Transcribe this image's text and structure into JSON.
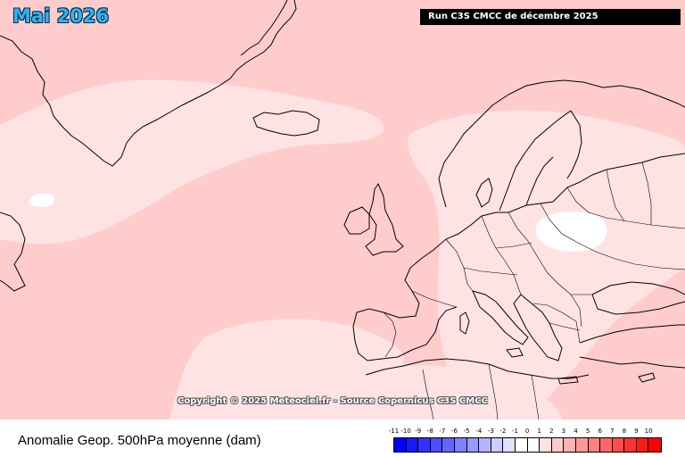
{
  "header": {
    "title": "Mai 2026",
    "run": "Run C3S CMCC de décembre 2025"
  },
  "overlay": {
    "copyright": "Copyright © 2025 Meteociel.fr - Source Copernicus C3S CMCC"
  },
  "map": {
    "variable": "Anomalie Geop. 500hPa moyenne (dam)",
    "background_color": "#ffcccc",
    "anomaly_regions": [
      {
        "level": "0 to 1",
        "color": "#ffe3e3",
        "area": "North Atlantic south of Greenland / Iceland"
      },
      {
        "level": "0 to 1",
        "color": "#ffe3e3",
        "area": "Europe (Scandinavia to Mediterranean)"
      },
      {
        "level": "0 to 1",
        "color": "#ffe3e3",
        "area": "Subtropical Atlantic / North Africa"
      },
      {
        "level": "-1 to 0",
        "color": "#ffffff",
        "area": "Poland"
      },
      {
        "level": "-1 to 0",
        "color": "#ffffff",
        "area": "Labrador Sea"
      }
    ]
  },
  "legend": {
    "caption": "Anomalie Geop. 500hPa moyenne (dam)",
    "ticks": [
      "-11",
      "-10",
      "-9",
      "-8",
      "-7",
      "-6",
      "-5",
      "-4",
      "-3",
      "-2",
      "-1",
      "0",
      "1",
      "2",
      "3",
      "4",
      "5",
      "6",
      "7",
      "8",
      "9",
      "10"
    ],
    "colors": [
      "#0000ff",
      "#1818ff",
      "#3333ff",
      "#4d4dff",
      "#6666ff",
      "#8080ff",
      "#9999ff",
      "#b3b3ff",
      "#ccccff",
      "#e0e0ff",
      "#ffffff",
      "#ffffff",
      "#ffe3e3",
      "#ffcccc",
      "#ffb3b3",
      "#ff9999",
      "#ff8080",
      "#ff6666",
      "#ff4d4d",
      "#ff3333",
      "#ff1a1a",
      "#ff0000"
    ]
  }
}
